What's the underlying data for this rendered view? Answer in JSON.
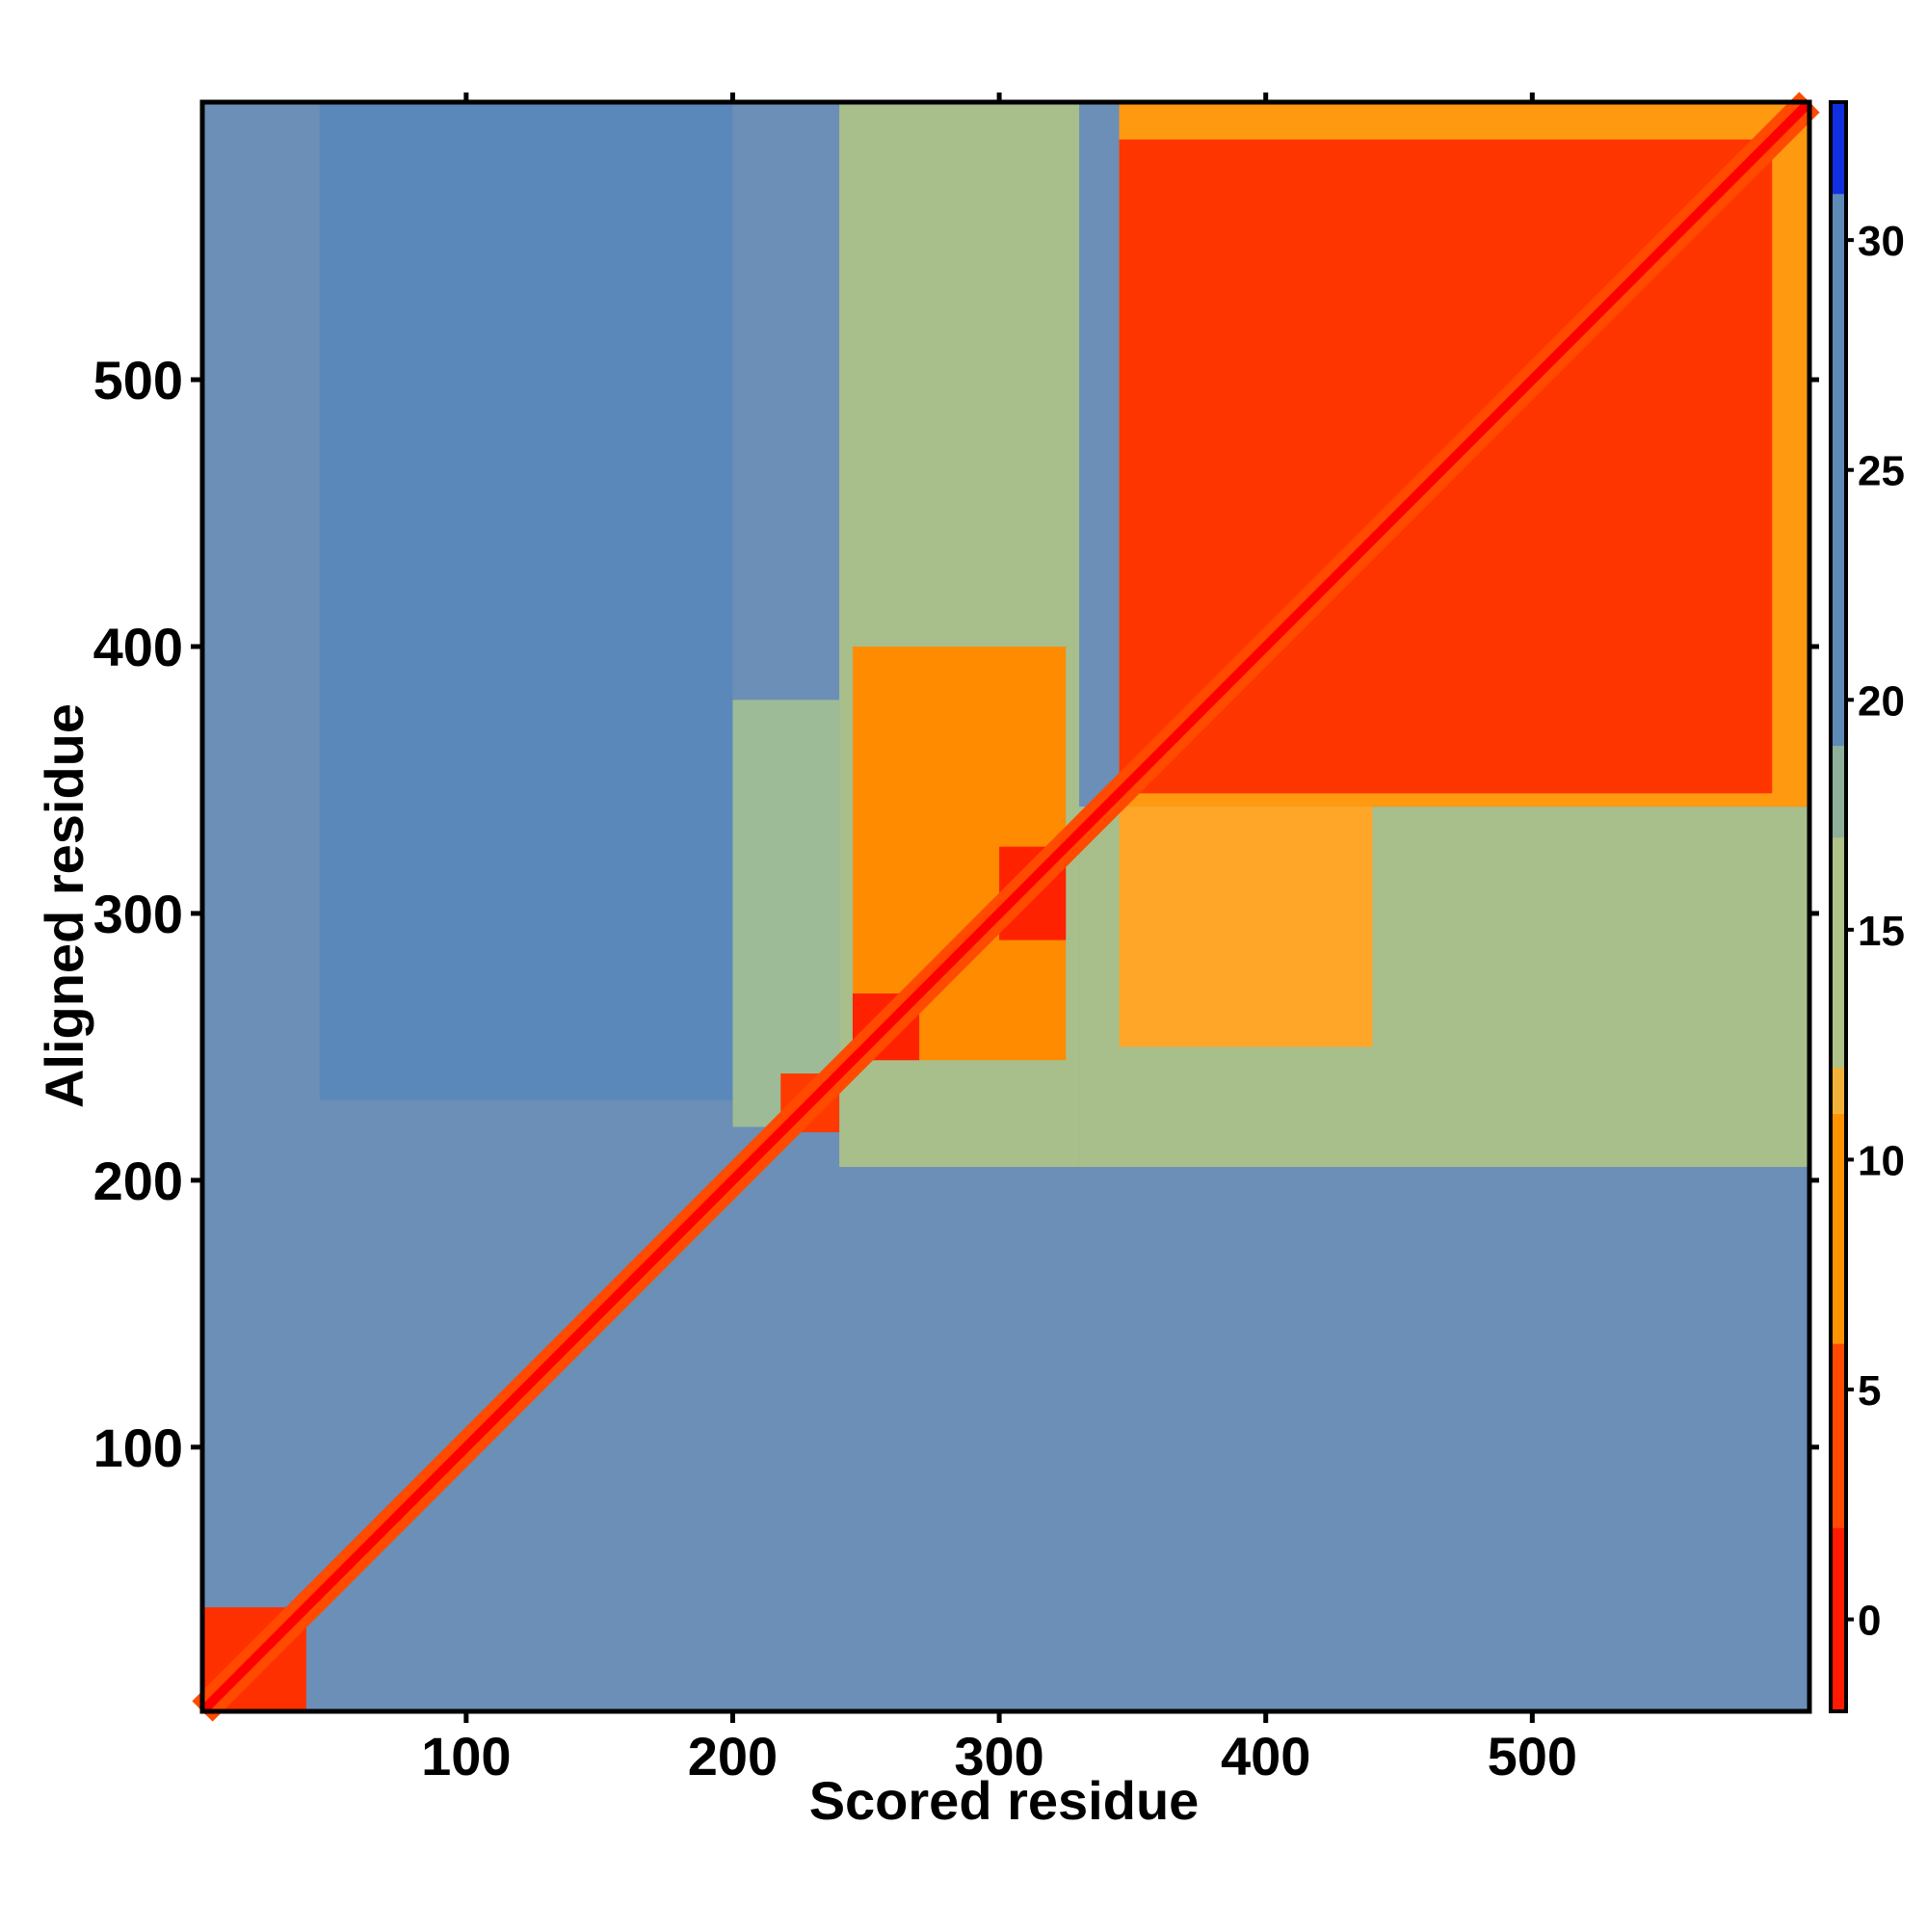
{
  "chart_data": {
    "type": "heatmap",
    "title": "",
    "xlabel": "Scored residue",
    "ylabel": "Aligned residue",
    "xlim": [
      1,
      604
    ],
    "ylim": [
      1,
      604
    ],
    "x_ticks": [
      100,
      200,
      300,
      400,
      500
    ],
    "y_ticks": [
      100,
      200,
      300,
      400,
      500
    ],
    "grid": false,
    "legend": "colorbar-right",
    "colorbar": {
      "range": [
        -2,
        33
      ],
      "ticks": [
        0,
        5,
        10,
        15,
        20,
        25,
        30
      ],
      "bands": [
        {
          "from": -2,
          "to": 2,
          "color": "#ff1a00"
        },
        {
          "from": 2,
          "to": 6,
          "color": "#ff4a00"
        },
        {
          "from": 6,
          "to": 11,
          "color": "#ff9400"
        },
        {
          "from": 11,
          "to": 12,
          "color": "#f2b23a"
        },
        {
          "from": 12,
          "to": 17,
          "color": "#aec28a"
        },
        {
          "from": 17,
          "to": 19,
          "color": "#8fb09a"
        },
        {
          "from": 19,
          "to": 31,
          "color": "#5e8ab8"
        },
        {
          "from": 31,
          "to": 33,
          "color": "#1030e0"
        }
      ]
    },
    "diagonal_color": "#ff0000",
    "regions": [
      {
        "x": [
          1,
          604
        ],
        "y": [
          1,
          604
        ],
        "value": 24,
        "color": "#6b8fb6"
      },
      {
        "x": [
          45,
          200
        ],
        "y": [
          230,
          604
        ],
        "value": 27,
        "color": "#5b88bb"
      },
      {
        "x": [
          200,
          240
        ],
        "y": [
          220,
          380
        ],
        "value": 17,
        "color": "#9dbb96"
      },
      {
        "x": [
          240,
          330
        ],
        "y": [
          205,
          604
        ],
        "value": 16,
        "color": "#a8bf8c"
      },
      {
        "x": [
          330,
          604
        ],
        "y": [
          205,
          340
        ],
        "value": 15,
        "color": "#a8bf8c"
      },
      {
        "x": [
          345,
          604
        ],
        "y": [
          340,
          604
        ],
        "value": 9,
        "color": "#ff9a10"
      },
      {
        "x": [
          345,
          440
        ],
        "y": [
          250,
          340
        ],
        "value": 10,
        "color": "#ffa528"
      },
      {
        "x": [
          245,
          325
        ],
        "y": [
          245,
          400
        ],
        "value": 8,
        "color": "#ff8c00"
      },
      {
        "x": [
          1,
          40
        ],
        "y": [
          1,
          40
        ],
        "value": 3,
        "color": "#ff3000"
      },
      {
        "x": [
          218,
          240
        ],
        "y": [
          218,
          240
        ],
        "value": 3,
        "color": "#ff3a00"
      },
      {
        "x": [
          245,
          270
        ],
        "y": [
          245,
          270
        ],
        "value": 2,
        "color": "#ff2200"
      },
      {
        "x": [
          300,
          325
        ],
        "y": [
          290,
          325
        ],
        "value": 2,
        "color": "#ff2200"
      },
      {
        "x": [
          345,
          590
        ],
        "y": [
          345,
          590
        ],
        "value": 3,
        "color": "#ff3500"
      }
    ]
  }
}
